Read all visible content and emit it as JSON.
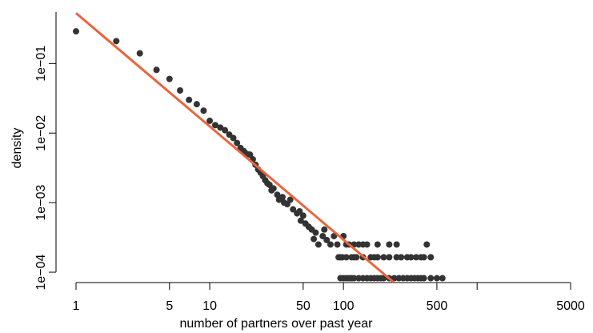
{
  "chart_data": {
    "type": "scatter",
    "xlabel": "number of partners over past year",
    "ylabel": "density",
    "xlog": true,
    "ylog": true,
    "xlim": [
      1,
      5000
    ],
    "ylim": [
      7e-05,
      0.55
    ],
    "xticks": [
      1,
      5,
      10,
      50,
      100,
      500,
      {
        "value": 1000,
        "label": null
      },
      5000
    ],
    "yticks": [
      {
        "value": 0.0001,
        "label": "1e−04"
      },
      {
        "value": 0.001,
        "label": "1e−03"
      },
      {
        "value": 0.01,
        "label": "1e−02"
      },
      {
        "value": 0.1,
        "label": "1e−01"
      }
    ],
    "color": "#333333",
    "x": [
      1,
      2,
      3,
      4,
      5,
      6,
      7,
      8,
      9,
      10,
      11,
      12,
      13,
      14,
      15,
      16,
      17,
      18,
      19,
      20,
      21,
      22,
      23,
      24,
      25,
      26,
      27,
      28,
      29,
      30,
      32,
      33,
      35,
      36,
      38,
      40,
      42,
      45,
      47,
      48,
      50,
      52,
      55,
      58,
      60,
      62,
      65,
      70,
      72,
      75,
      80,
      85,
      90,
      95,
      100,
      110,
      120,
      130,
      150,
      160,
      200,
      250,
      300,
      350,
      400,
      420,
      450,
      95,
      100,
      105,
      110,
      115,
      120,
      130,
      140,
      150,
      160,
      170,
      180,
      190,
      200,
      220,
      240,
      260,
      280,
      300,
      320,
      340,
      360,
      380,
      400,
      450,
      500,
      550,
      92,
      98,
      105,
      115,
      125,
      140,
      170,
      180,
      220,
      270,
      320,
      380,
      105,
      120,
      140,
      180,
      220,
      250
    ],
    "values": [
      0.29,
      0.21,
      0.14,
      0.081,
      0.06,
      0.041,
      0.03,
      0.026,
      0.021,
      0.015,
      0.013,
      0.012,
      0.011,
      0.0095,
      0.0085,
      0.0072,
      0.0061,
      0.0055,
      0.005,
      0.0049,
      0.0042,
      0.0035,
      0.003,
      0.0027,
      0.0024,
      0.0021,
      0.0019,
      0.0018,
      0.0015,
      0.0016,
      0.0013,
      0.0011,
      0.0012,
      0.001,
      0.00095,
      0.0011,
      0.0008,
      0.0007,
      0.00075,
      0.00055,
      0.00065,
      0.0005,
      0.00045,
      0.00041,
      0.0003,
      0.00037,
      0.00025,
      0.00033,
      0.00041,
      0.00029,
      0.00025,
      0.00033,
      0.00025,
      0.000164,
      0.00033,
      0.00025,
      0.000164,
      0.00025,
      0.00025,
      0.000164,
      0.000164,
      0.000164,
      0.000164,
      0.000164,
      0.000164,
      0.00025,
      0.000164,
      8.2e-05,
      8.2e-05,
      8.2e-05,
      8.2e-05,
      8.2e-05,
      8.2e-05,
      8.2e-05,
      8.2e-05,
      8.2e-05,
      8.2e-05,
      8.2e-05,
      8.2e-05,
      8.2e-05,
      8.2e-05,
      8.2e-05,
      8.2e-05,
      8.2e-05,
      8.2e-05,
      8.2e-05,
      8.2e-05,
      8.2e-05,
      8.2e-05,
      8.2e-05,
      8.2e-05,
      8.2e-05,
      8.2e-05,
      8.2e-05,
      0.000164,
      0.000164,
      0.000164,
      0.000164,
      0.000164,
      0.000164,
      0.000164,
      0.000164,
      0.000164,
      0.000164,
      0.000164,
      0.000164,
      0.00025,
      0.00025,
      0.00025,
      0.00025,
      0.00025,
      0.00025
    ],
    "fit": {
      "x": [
        1,
        236
      ],
      "values": [
        0.53,
        7.24e-05
      ],
      "color": "#e8663d"
    }
  }
}
